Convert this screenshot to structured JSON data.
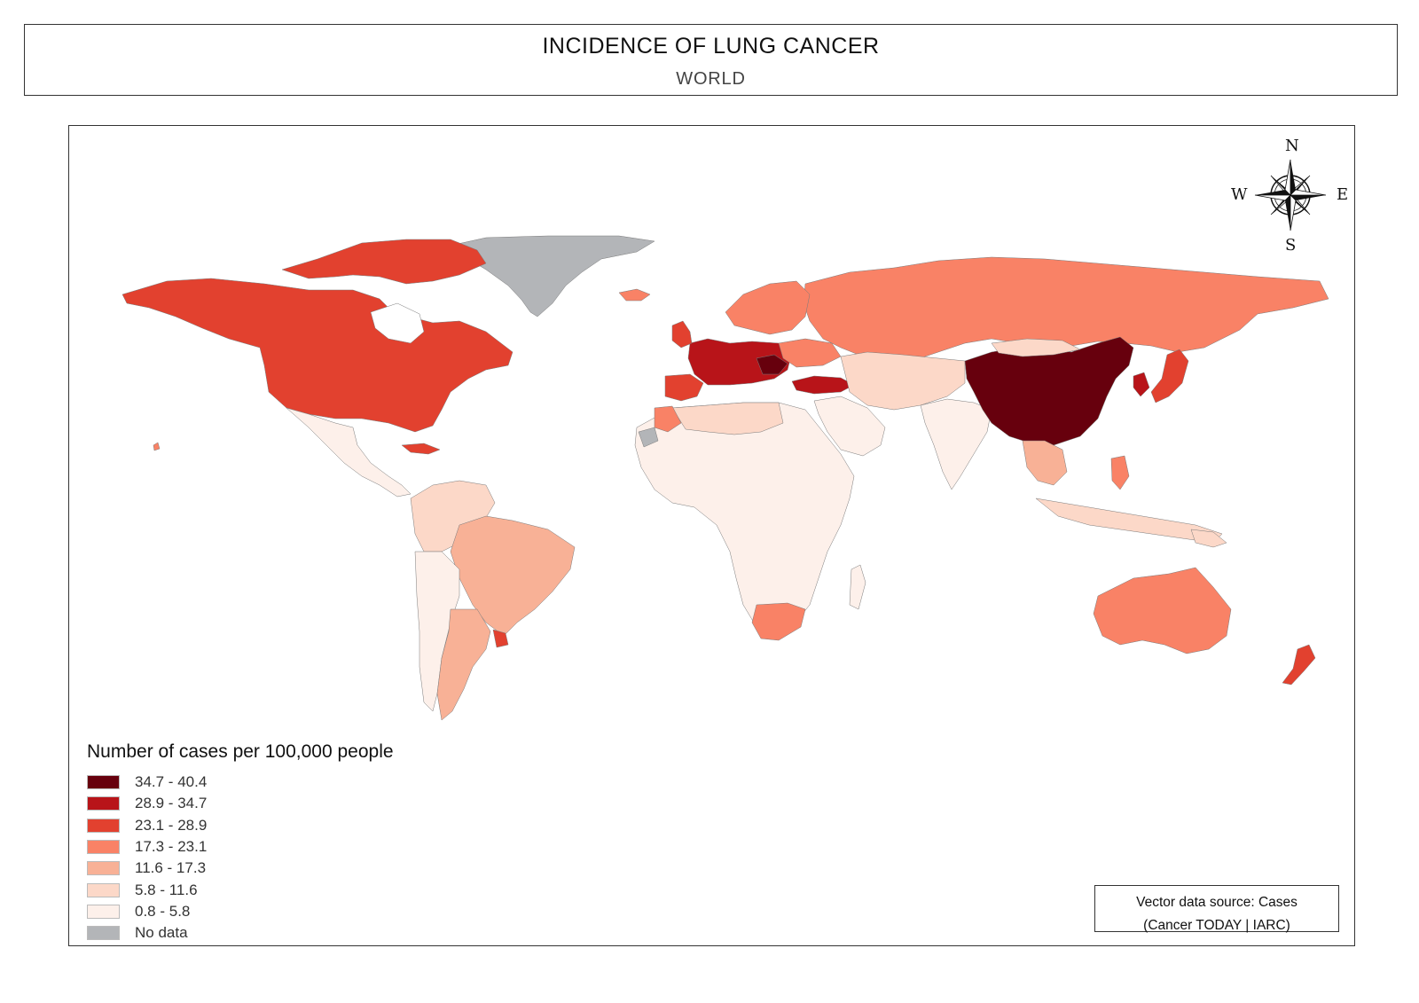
{
  "header": {
    "title": "INCIDENCE OF LUNG CANCER",
    "subtitle": "WORLD"
  },
  "compass": {
    "north": "N",
    "south": "S",
    "east": "E",
    "west": "W"
  },
  "legend": {
    "title": "Number of cases per 100,000 people",
    "items": [
      {
        "label": "34.7 - 40.4",
        "color": "#67000d"
      },
      {
        "label": "28.9 - 34.7",
        "color": "#b81419"
      },
      {
        "label": "23.1 - 28.9",
        "color": "#e2412f"
      },
      {
        "label": "17.3 - 23.1",
        "color": "#f98266"
      },
      {
        "label": "11.6 - 17.3",
        "color": "#f8b196"
      },
      {
        "label": "5.8 - 11.6",
        "color": "#fcd8c8"
      },
      {
        "label": "0.8 - 5.8",
        "color": "#fdf0ea"
      },
      {
        "label": "No data",
        "color": "#b3b5b8"
      }
    ]
  },
  "source": {
    "line1": "Vector data source: Cases",
    "line2": "(Cancer TODAY | IARC)"
  }
}
